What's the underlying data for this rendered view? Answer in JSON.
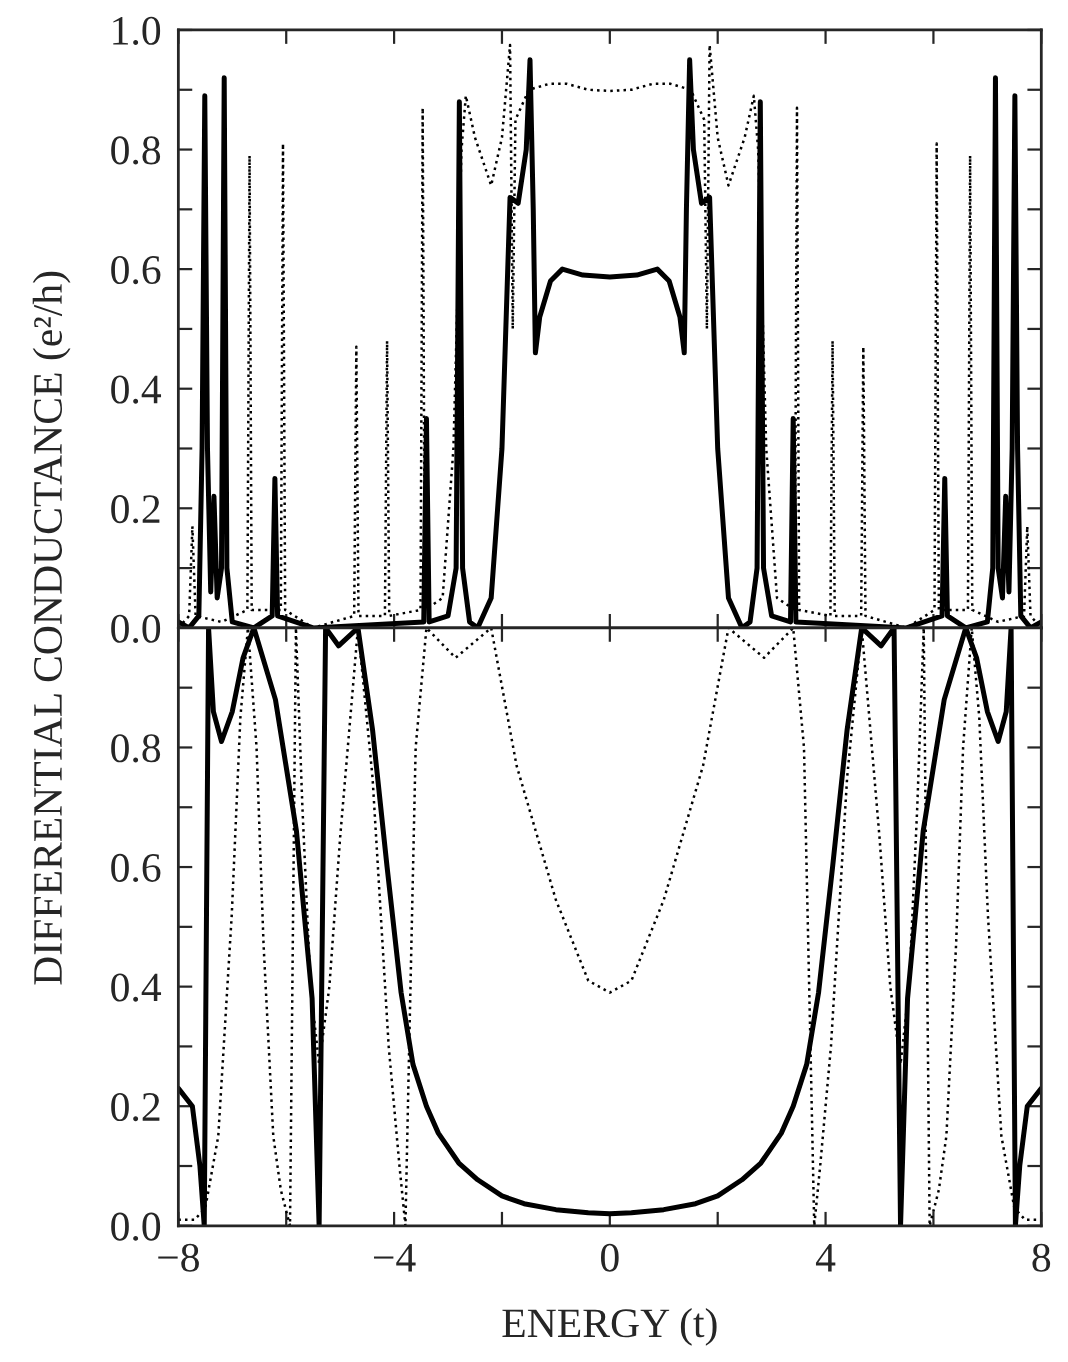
{
  "chart_data": [
    {
      "type": "line",
      "ylabel": "DIFFERENTIAL CONDUCTANCE (e²/h)",
      "tick_labels": "y",
      "grid": false,
      "xlim": [
        -8,
        8
      ],
      "xticks": [
        {
          "value": -8,
          "label": null
        },
        {
          "value": -6,
          "label": null
        },
        {
          "value": -4,
          "label": null
        },
        {
          "value": -2,
          "label": null
        },
        {
          "value": 0,
          "label": null
        },
        {
          "value": 2,
          "label": null
        },
        {
          "value": 4,
          "label": null
        },
        {
          "value": 6,
          "label": null
        },
        {
          "value": 8,
          "label": null
        }
      ],
      "ylim": [
        0,
        1.0
      ],
      "yticks": [
        {
          "value": 0,
          "label": "0.0"
        },
        {
          "value": 0.1,
          "label": null
        },
        {
          "value": 0.2,
          "label": "0.2"
        },
        {
          "value": 0.3,
          "label": null
        },
        {
          "value": 0.4,
          "label": "0.4"
        },
        {
          "value": 0.5,
          "label": null
        },
        {
          "value": 0.6,
          "label": "0.6"
        },
        {
          "value": 0.7,
          "label": null
        },
        {
          "value": 0.8,
          "label": "0.8"
        },
        {
          "value": 0.9,
          "label": null
        },
        {
          "value": 1.0,
          "label": "1.0"
        }
      ],
      "series": [
        {
          "color": "#000000",
          "line_style": "solid",
          "x": [
            -8,
            -7.8,
            -7.62,
            -7.56,
            -7.51,
            -7.46,
            -7.4,
            -7.34,
            -7.28,
            -7.2,
            -7.15,
            -7.1,
            -7.0,
            -6.6,
            -6.26,
            -6.21,
            -6.16,
            -5.5,
            -3.45,
            -3.4,
            -3.35,
            -3.0,
            -2.85,
            -2.79,
            -2.73,
            -2.6,
            -2.45,
            -2.2,
            -2.0,
            -1.85,
            -1.7,
            -1.55,
            -1.48,
            -1.42,
            -1.38,
            -1.3,
            -1.1,
            -0.88,
            -0.5,
            0,
            0.5,
            0.88,
            1.1,
            1.3,
            1.38,
            1.42,
            1.48,
            1.55,
            1.7,
            1.85,
            2.0,
            2.2,
            2.45,
            2.6,
            2.73,
            2.79,
            2.85,
            3.0,
            3.35,
            3.4,
            3.45,
            5.5,
            6.16,
            6.21,
            6.26,
            6.6,
            7.0,
            7.1,
            7.15,
            7.2,
            7.28,
            7.34,
            7.4,
            7.46,
            7.51,
            7.56,
            7.62,
            7.8,
            8
          ],
          "values": [
            0.01,
            0.0,
            0.02,
            0.3,
            0.89,
            0.3,
            0.06,
            0.22,
            0.05,
            0.1,
            0.92,
            0.1,
            0.01,
            0.0,
            0.02,
            0.25,
            0.02,
            0.0,
            0.01,
            0.35,
            0.01,
            0.02,
            0.1,
            0.88,
            0.1,
            0.01,
            0.0,
            0.05,
            0.3,
            0.72,
            0.71,
            0.8,
            0.95,
            0.7,
            0.46,
            0.52,
            0.58,
            0.6,
            0.59,
            0.587,
            0.59,
            0.6,
            0.58,
            0.52,
            0.46,
            0.7,
            0.95,
            0.8,
            0.71,
            0.72,
            0.3,
            0.05,
            0.0,
            0.01,
            0.1,
            0.88,
            0.1,
            0.02,
            0.01,
            0.35,
            0.01,
            0.0,
            0.02,
            0.25,
            0.02,
            0.0,
            0.01,
            0.1,
            0.92,
            0.1,
            0.05,
            0.22,
            0.06,
            0.3,
            0.89,
            0.3,
            0.02,
            0.0,
            0.01
          ]
        },
        {
          "color": "#000000",
          "line_style": "dotted",
          "x": [
            -8,
            -7.8,
            -7.74,
            -7.68,
            -7.2,
            -6.72,
            -6.68,
            -6.64,
            -6.1,
            -6.06,
            -6.02,
            -5.5,
            -4.74,
            -4.7,
            -4.66,
            -4.17,
            -4.13,
            -4.09,
            -3.51,
            -3.47,
            -3.43,
            -3.1,
            -2.9,
            -2.75,
            -2.67,
            -2.5,
            -2.2,
            -2.0,
            -1.85,
            -1.8,
            -1.75,
            -1.5,
            -1.12,
            -0.8,
            -0.4,
            0,
            0.4,
            0.8,
            1.12,
            1.5,
            1.75,
            1.8,
            1.85,
            2.0,
            2.2,
            2.5,
            2.67,
            2.75,
            2.9,
            3.1,
            3.43,
            3.47,
            3.51,
            4.09,
            4.13,
            4.17,
            4.66,
            4.7,
            4.74,
            5.5,
            6.02,
            6.06,
            6.1,
            6.64,
            6.68,
            6.72,
            7.2,
            7.68,
            7.74,
            7.8,
            8
          ],
          "values": [
            0.0,
            0.02,
            0.17,
            0.02,
            0.01,
            0.03,
            0.79,
            0.03,
            0.03,
            0.81,
            0.03,
            0.0,
            0.02,
            0.47,
            0.02,
            0.02,
            0.48,
            0.02,
            0.03,
            0.87,
            0.03,
            0.05,
            0.3,
            0.8,
            0.89,
            0.82,
            0.74,
            0.82,
            0.975,
            0.5,
            0.85,
            0.9,
            0.91,
            0.91,
            0.9,
            0.898,
            0.9,
            0.91,
            0.91,
            0.9,
            0.85,
            0.5,
            0.975,
            0.82,
            0.74,
            0.82,
            0.89,
            0.8,
            0.3,
            0.05,
            0.03,
            0.87,
            0.03,
            0.02,
            0.48,
            0.02,
            0.02,
            0.47,
            0.02,
            0.0,
            0.03,
            0.81,
            0.03,
            0.03,
            0.79,
            0.03,
            0.01,
            0.02,
            0.17,
            0.02,
            0.0
          ]
        }
      ]
    },
    {
      "type": "line",
      "xlabel": "ENERGY (t)",
      "grid": false,
      "xlim": [
        -8,
        8
      ],
      "xticks": [
        {
          "value": -8,
          "label": "−8"
        },
        {
          "value": -6,
          "label": null
        },
        {
          "value": -4,
          "label": "−4"
        },
        {
          "value": -2,
          "label": null
        },
        0,
        {
          "value": 2,
          "label": null
        },
        4,
        {
          "value": 6,
          "label": null
        },
        8
      ],
      "ylim": [
        0,
        1.0
      ],
      "yticks": [
        {
          "value": 0,
          "label": "0.0"
        },
        {
          "value": 0.1,
          "label": null
        },
        {
          "value": 0.2,
          "label": "0.2"
        },
        {
          "value": 0.3,
          "label": null
        },
        {
          "value": 0.4,
          "label": "0.4"
        },
        {
          "value": 0.5,
          "label": null
        },
        {
          "value": 0.6,
          "label": "0.6"
        },
        {
          "value": 0.7,
          "label": null
        },
        {
          "value": 0.8,
          "label": "0.8"
        },
        {
          "value": 0.9,
          "label": null
        },
        {
          "value": 1.0,
          "label": null
        }
      ],
      "series": [
        {
          "color": "#000000",
          "line_style": "solid",
          "x": [
            -8,
            -7.74,
            -7.6,
            -7.52,
            -7.44,
            -7.35,
            -7.2,
            -7.0,
            -6.8,
            -6.6,
            -6.2,
            -5.81,
            -5.52,
            -5.39,
            -5.27,
            -5.03,
            -4.67,
            -4.4,
            -4.13,
            -3.87,
            -3.65,
            -3.4,
            -3.18,
            -2.8,
            -2.45,
            -2.0,
            -1.59,
            -1.0,
            -0.4,
            0,
            0.4,
            1.0,
            1.59,
            2.0,
            2.45,
            2.8,
            3.18,
            3.4,
            3.65,
            3.87,
            4.13,
            4.4,
            4.67,
            5.03,
            5.27,
            5.39,
            5.52,
            5.81,
            6.2,
            6.6,
            6.8,
            7.0,
            7.2,
            7.35,
            7.44,
            7.52,
            7.6,
            7.74,
            8
          ],
          "values": [
            0.23,
            0.2,
            0.1,
            0.0,
            1.0,
            0.86,
            0.81,
            0.86,
            0.95,
            1.0,
            0.88,
            0.66,
            0.38,
            0.0,
            1.0,
            0.97,
            1.0,
            0.83,
            0.6,
            0.39,
            0.27,
            0.2,
            0.155,
            0.105,
            0.077,
            0.05,
            0.037,
            0.027,
            0.022,
            0.02,
            0.022,
            0.027,
            0.037,
            0.05,
            0.077,
            0.105,
            0.155,
            0.2,
            0.27,
            0.39,
            0.6,
            0.83,
            1.0,
            0.97,
            1.0,
            0.0,
            0.38,
            0.66,
            0.88,
            1.0,
            0.95,
            0.86,
            0.81,
            0.86,
            1.0,
            0.0,
            0.1,
            0.2,
            0.23
          ]
        },
        {
          "color": "#000000",
          "line_style": "dotted",
          "x": [
            -8,
            -7.7,
            -7.5,
            -7.26,
            -7.01,
            -6.85,
            -6.71,
            -6.55,
            -6.42,
            -6.24,
            -6.1,
            -5.93,
            -5.82,
            -5.7,
            -5.55,
            -5.39,
            -5.2,
            -5.0,
            -4.67,
            -4.4,
            -4.1,
            -3.9,
            -3.79,
            -3.72,
            -3.6,
            -3.4,
            -2.86,
            -2.2,
            -1.73,
            -1.0,
            -0.4,
            0,
            0.4,
            1.0,
            1.73,
            2.2,
            2.86,
            3.4,
            3.6,
            3.72,
            3.79,
            3.9,
            4.1,
            4.4,
            4.67,
            5.0,
            5.2,
            5.39,
            5.55,
            5.7,
            5.82,
            5.93,
            6.1,
            6.24,
            6.42,
            6.55,
            6.71,
            6.85,
            7.01,
            7.26,
            7.5,
            7.7,
            8
          ],
          "values": [
            0.01,
            0.01,
            0.03,
            0.15,
            0.52,
            0.85,
            1.0,
            0.8,
            0.47,
            0.15,
            0.06,
            0.0,
            1.0,
            0.7,
            0.4,
            0.27,
            0.4,
            0.65,
            1.0,
            0.75,
            0.3,
            0.1,
            0.0,
            0.3,
            0.8,
            1.0,
            0.95,
            1.0,
            0.77,
            0.545,
            0.41,
            0.39,
            0.41,
            0.545,
            0.77,
            1.0,
            0.95,
            1.0,
            0.8,
            0.3,
            0.0,
            0.1,
            0.3,
            0.75,
            1.0,
            0.65,
            0.4,
            0.27,
            0.4,
            0.7,
            1.0,
            0.0,
            0.06,
            0.15,
            0.47,
            0.8,
            1.0,
            0.85,
            0.52,
            0.15,
            0.03,
            0.01,
            0.01
          ]
        }
      ]
    }
  ]
}
